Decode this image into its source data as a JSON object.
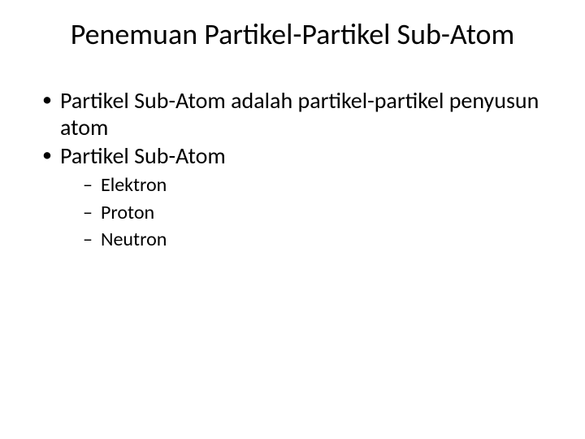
{
  "slide": {
    "title": "Penemuan Partikel-Partikel Sub-Atom",
    "bullets": [
      {
        "text": "Partikel Sub-Atom adalah partikel-partikel penyusun atom"
      },
      {
        "text": "Partikel Sub-Atom",
        "children": [
          {
            "text": "Elektron"
          },
          {
            "text": "Proton"
          },
          {
            "text": "Neutron"
          }
        ]
      }
    ]
  },
  "style": {
    "background_color": "#ffffff",
    "text_color": "#000000",
    "title_fontsize": 36,
    "body_fontsize": 28,
    "sub_fontsize": 24,
    "font_family": "Calibri"
  }
}
